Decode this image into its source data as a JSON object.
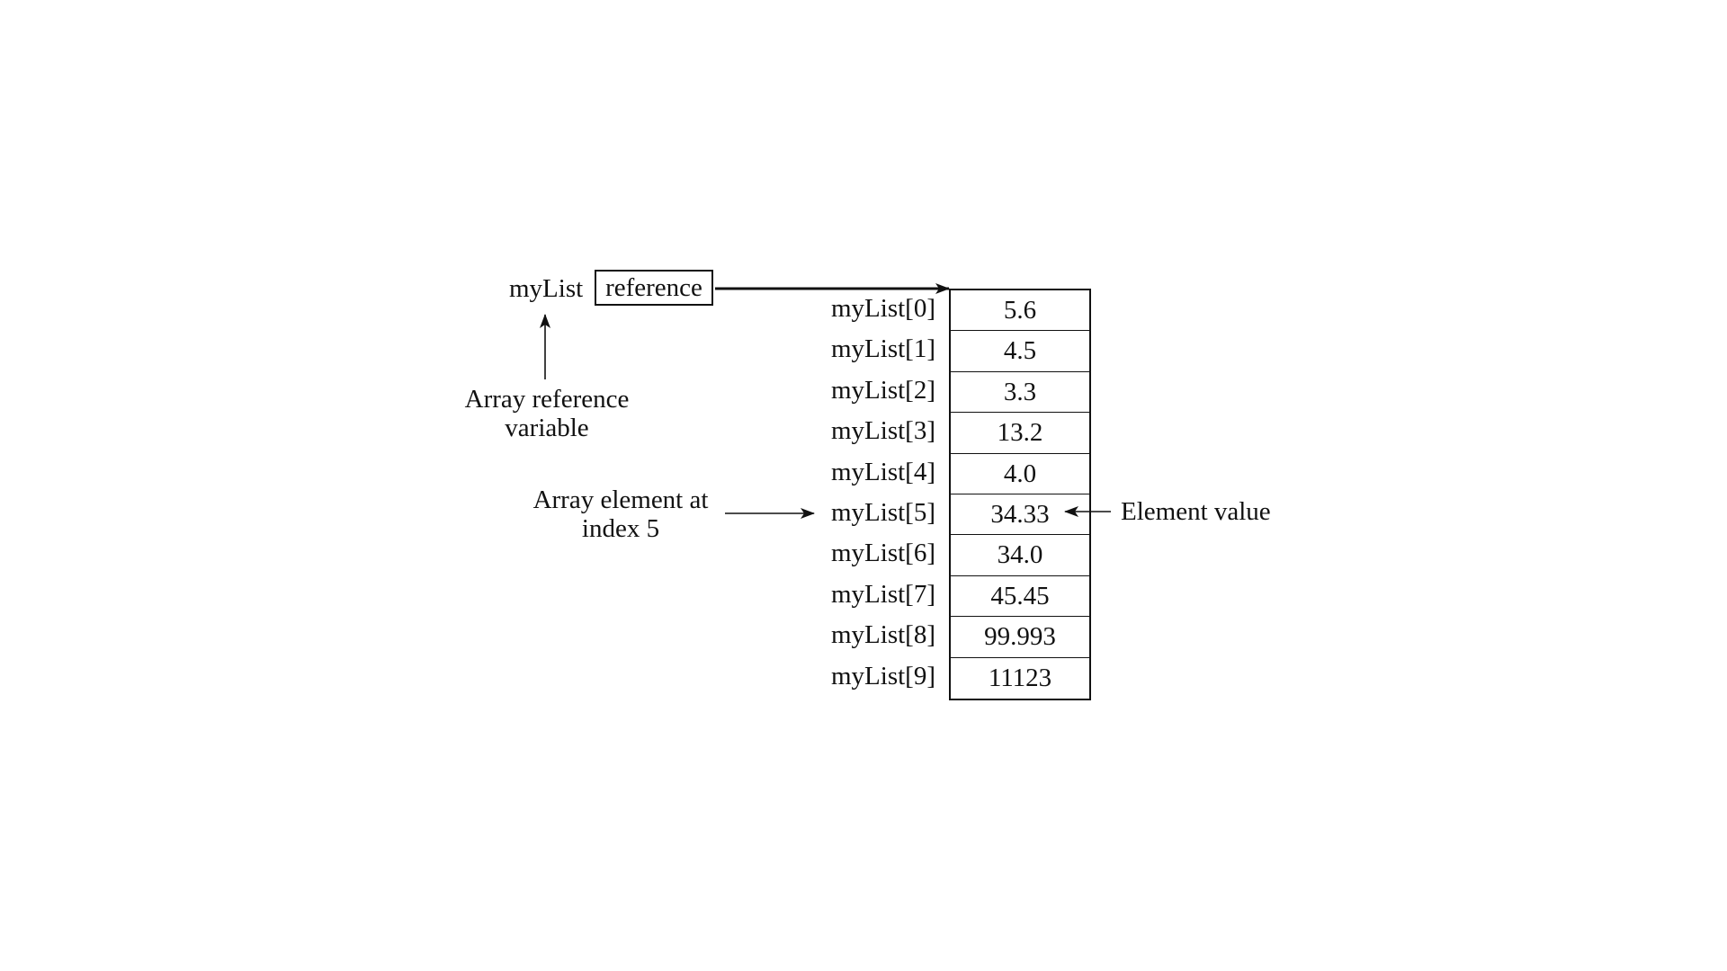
{
  "variable": {
    "name": "myList",
    "box_label": "reference"
  },
  "captions": {
    "reference_variable": [
      "Array reference",
      "variable"
    ],
    "element_at_index": [
      "Array element at",
      "index 5"
    ],
    "element_value": "Element value"
  },
  "array": {
    "indices": [
      "myList[0]",
      "myList[1]",
      "myList[2]",
      "myList[3]",
      "myList[4]",
      "myList[5]",
      "myList[6]",
      "myList[7]",
      "myList[8]",
      "myList[9]"
    ],
    "values": [
      "5.6",
      "4.5",
      "3.3",
      "13.2",
      "4.0",
      "34.33",
      "34.0",
      "45.45",
      "99.993",
      "11123"
    ],
    "highlighted_index": 5
  }
}
